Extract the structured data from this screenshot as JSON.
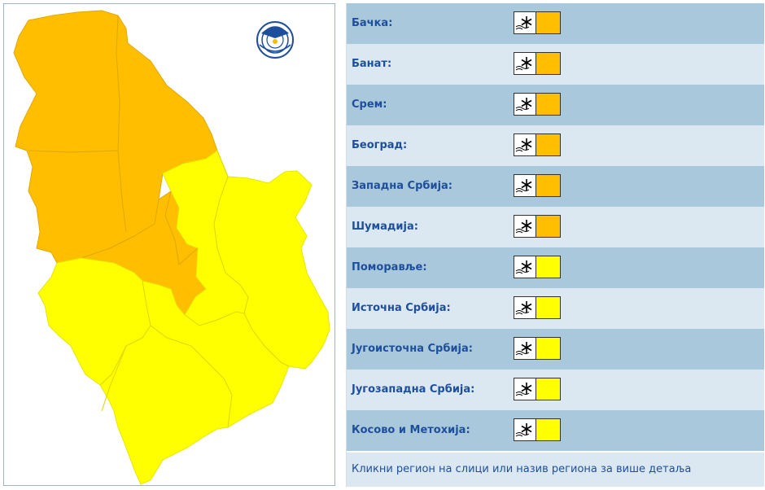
{
  "colors": {
    "orange_level": "#ffbf00",
    "yellow_level": "#ffff00",
    "row_dark": "#a9c8dc",
    "row_light": "#dbe7f1",
    "label": "#1e4f9c"
  },
  "map": {
    "logo_text": "РХМЗ СРБИЈЕ",
    "regions_orange": [
      "Бачка",
      "Банат",
      "Срем",
      "Београд",
      "Западна Србија",
      "Шумадија"
    ],
    "regions_yellow": [
      "Поморавље",
      "Источна Србија",
      "Југоисточна Србија",
      "Југозападна Србија",
      "Косово и Метохија"
    ]
  },
  "regions": [
    {
      "label": "Бачка:",
      "icon": "snow-icon",
      "level_color": "#ffbf00"
    },
    {
      "label": "Банат:",
      "icon": "snow-icon",
      "level_color": "#ffbf00"
    },
    {
      "label": "Срем:",
      "icon": "snow-icon",
      "level_color": "#ffbf00"
    },
    {
      "label": "Београд:",
      "icon": "snow-icon",
      "level_color": "#ffbf00"
    },
    {
      "label": "Западна Србија:",
      "icon": "snow-icon",
      "level_color": "#ffbf00"
    },
    {
      "label": "Шумадија:",
      "icon": "snow-icon",
      "level_color": "#ffbf00"
    },
    {
      "label": "Поморавље:",
      "icon": "snow-icon",
      "level_color": "#ffff00"
    },
    {
      "label": "Источна Србија:",
      "icon": "snow-icon",
      "level_color": "#ffff00"
    },
    {
      "label": "Југоисточна Србија:",
      "icon": "snow-icon",
      "level_color": "#ffff00"
    },
    {
      "label": "Југозападна Србија:",
      "icon": "snow-icon",
      "level_color": "#ffff00"
    },
    {
      "label": "Косово и Метохија:",
      "icon": "snow-icon",
      "level_color": "#ffff00"
    }
  ],
  "footer": {
    "text": "Кликни регион на слици или назив региона за више детаља"
  }
}
